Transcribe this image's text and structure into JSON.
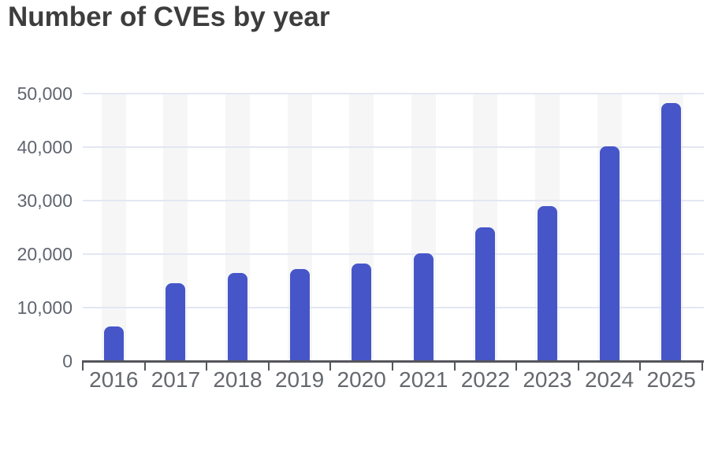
{
  "page": {
    "background": "#ffffff"
  },
  "chart_data": {
    "type": "bar",
    "title": "Number of CVEs by year",
    "categories": [
      "2016",
      "2017",
      "2018",
      "2019",
      "2020",
      "2021",
      "2022",
      "2023",
      "2024",
      "2025"
    ],
    "values": [
      6400,
      14500,
      16400,
      17200,
      18300,
      20200,
      25000,
      29000,
      40200,
      48300
    ],
    "xlabel": "",
    "ylabel": "",
    "ylim": [
      0,
      50000
    ],
    "y_tick_step": 10000,
    "y_tick_labels": [
      "0",
      "10,000",
      "20,000",
      "30,000",
      "40,000",
      "50,000"
    ],
    "grid": "horizontal",
    "legend": "none",
    "column_background_bands": true,
    "colors": {
      "bar": "#4656c8",
      "column_band": "#f6f6f7",
      "gridline": "#e3e7f2",
      "axis": "#55565c",
      "x_label": "#65686d",
      "y_label": "#5f6570",
      "title": "#3d3d3d",
      "background": "#ffffff"
    }
  }
}
